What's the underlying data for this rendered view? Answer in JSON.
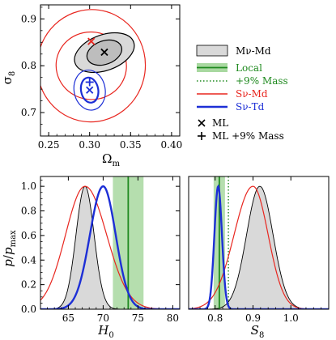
{
  "colors": {
    "mvmd_fill": "#d9d9d9",
    "local": "#1f8a1f",
    "local_band": "#a8d8a0",
    "sv_md": "#e8261f",
    "sv_td": "#1d2fd6"
  },
  "chart_data": [
    {
      "id": "contour",
      "type": "contour",
      "xlabel": "Ωm",
      "ylabel": "σ8",
      "xlim": [
        0.24,
        0.41
      ],
      "ylim": [
        0.65,
        0.93
      ],
      "xticks": [
        "0.25",
        "0.30",
        "0.35",
        "0.40"
      ],
      "yticks": [
        "0.7",
        "0.8",
        "0.9"
      ],
      "xtick_values": [
        0.25,
        0.3,
        0.35,
        0.4
      ],
      "ytick_values": [
        0.7,
        0.8,
        0.9
      ],
      "series": [
        {
          "key": "mvmd",
          "center": [
            0.318,
            0.828
          ],
          "contours": [
            {
              "rx": 0.022,
              "ry": 0.025,
              "rot_deg": 20
            },
            {
              "rx": 0.038,
              "ry": 0.038,
              "rot_deg": 20
            }
          ]
        },
        {
          "key": "svmd",
          "center": [
            0.302,
            0.8
          ],
          "contours": [
            {
              "rx": 0.043,
              "ry": 0.072,
              "rot_deg": -8
            },
            {
              "rx": 0.066,
              "ry": 0.12,
              "rot_deg": -8
            }
          ]
        },
        {
          "key": "svtd",
          "center": [
            0.3,
            0.748
          ],
          "contours": [
            {
              "rx": 0.0105,
              "ry": 0.027,
              "rot_deg": 10
            },
            {
              "rx": 0.019,
              "ry": 0.043,
              "rot_deg": 10
            }
          ]
        }
      ],
      "markers": [
        {
          "key": "mvmd",
          "symbol": "x",
          "x": 0.318,
          "y": 0.829
        },
        {
          "key": "svmd",
          "symbol": "x",
          "x": 0.302,
          "y": 0.852
        },
        {
          "key": "svtd",
          "symbol": "x",
          "x": 0.3,
          "y": 0.748
        },
        {
          "key": "svtd",
          "symbol": "+",
          "x": 0.3,
          "y": 0.765
        }
      ]
    },
    {
      "id": "h0",
      "type": "line",
      "xlabel": "H0",
      "ylabel": "p/pmax",
      "xlim": [
        61,
        81
      ],
      "ylim": [
        0,
        1.08
      ],
      "xticks": [
        "65",
        "70",
        "75",
        "80"
      ],
      "yticks": [
        "0.0",
        "0.2",
        "0.4",
        "0.6",
        "0.8",
        "1.0"
      ],
      "xtick_values": [
        65,
        70,
        75,
        80
      ],
      "ytick_values": [
        0,
        0.2,
        0.4,
        0.6,
        0.8,
        1.0
      ],
      "series": [
        {
          "key": "mvmd",
          "mean": 67.4,
          "sigma_left": 1.3,
          "sigma_right": 1.3,
          "fill": true
        },
        {
          "key": "svmd",
          "mean": 67.4,
          "sigma_left": 2.8,
          "sigma_right": 3.1
        },
        {
          "key": "svtd",
          "mean": 70.0,
          "sigma_left": 1.9,
          "sigma_right": 1.8
        }
      ],
      "local": {
        "value": 73.6,
        "band": [
          71.4,
          75.8
        ]
      }
    },
    {
      "id": "s8",
      "type": "line",
      "xlabel": "S8",
      "ylabel": "",
      "xlim": [
        0.73,
        1.1
      ],
      "ylim": [
        0,
        1.08
      ],
      "xticks": [
        "0.8",
        "0.9",
        "1.0"
      ],
      "yticks": [],
      "xtick_values": [
        0.8,
        0.9,
        1.0
      ],
      "ytick_values": [],
      "series": [
        {
          "key": "mvmd",
          "mean": 0.918,
          "sigma_left": 0.035,
          "sigma_right": 0.035,
          "fill": true
        },
        {
          "key": "svmd",
          "mean": 0.9,
          "sigma_left": 0.05,
          "sigma_right": 0.04
        },
        {
          "key": "svtd",
          "mean": 0.808,
          "sigma_left": 0.01,
          "sigma_right": 0.01
        }
      ],
      "local": {
        "value": 0.811,
        "band": [
          0.796,
          0.826
        ]
      },
      "mass9": 0.835
    }
  ],
  "legend": {
    "mvmd": "Mν-Md",
    "local": "Local",
    "mass9": "+9% Mass",
    "svmd": "Sν-Md",
    "svtd": "Sν-Td",
    "ml": "ML",
    "ml9": "ML +9% Mass"
  },
  "labels": {
    "omega_base": "Ω",
    "omega_sub": "m",
    "sigma_base": "σ",
    "sigma_sub": "8",
    "p_num": "p",
    "p_den": "p",
    "p_den_sub": "max",
    "h0_base": "H",
    "h0_sub": "0",
    "s8_base": "S",
    "s8_sub": "8"
  }
}
